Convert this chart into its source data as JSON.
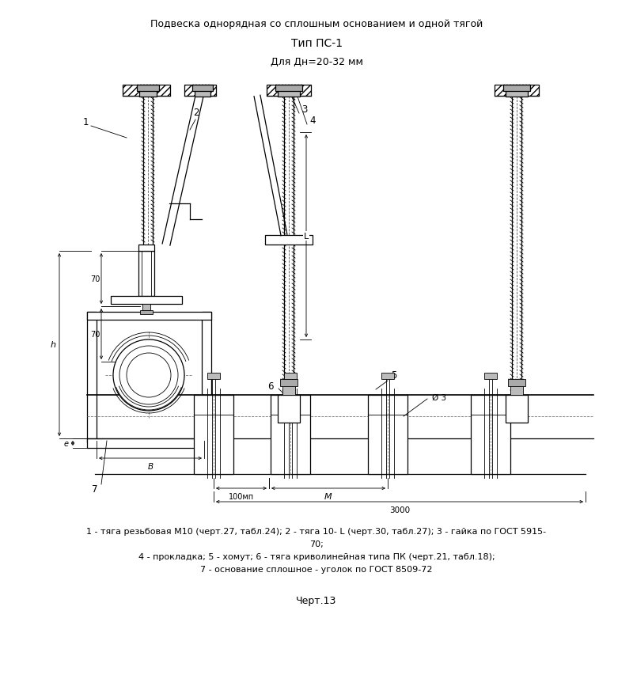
{
  "title_line1": "Подвеска однорядная со сплошным основанием и одной тягой",
  "title_line2": "Тип ПС-1",
  "title_line3": "Для Дн=20-32 мм",
  "caption_line1": "1 - тяга резьбовая М10 (черт.27, табл.24); 2 - тяга 10- L (черт.30, табл.27); 3 - гайка по ГОСТ 5915-",
  "caption_line2": "70;",
  "caption_line3": "4 - прокладка; 5 - хомут; 6 - тяга криволинейная типа ПК (черт.21, табл.18);",
  "caption_line4": "7 - основание сплошное - уголок по ГОСТ 8509-72",
  "drawing_number": "Черт.13",
  "bg_color": "#ffffff",
  "line_color": "#000000"
}
